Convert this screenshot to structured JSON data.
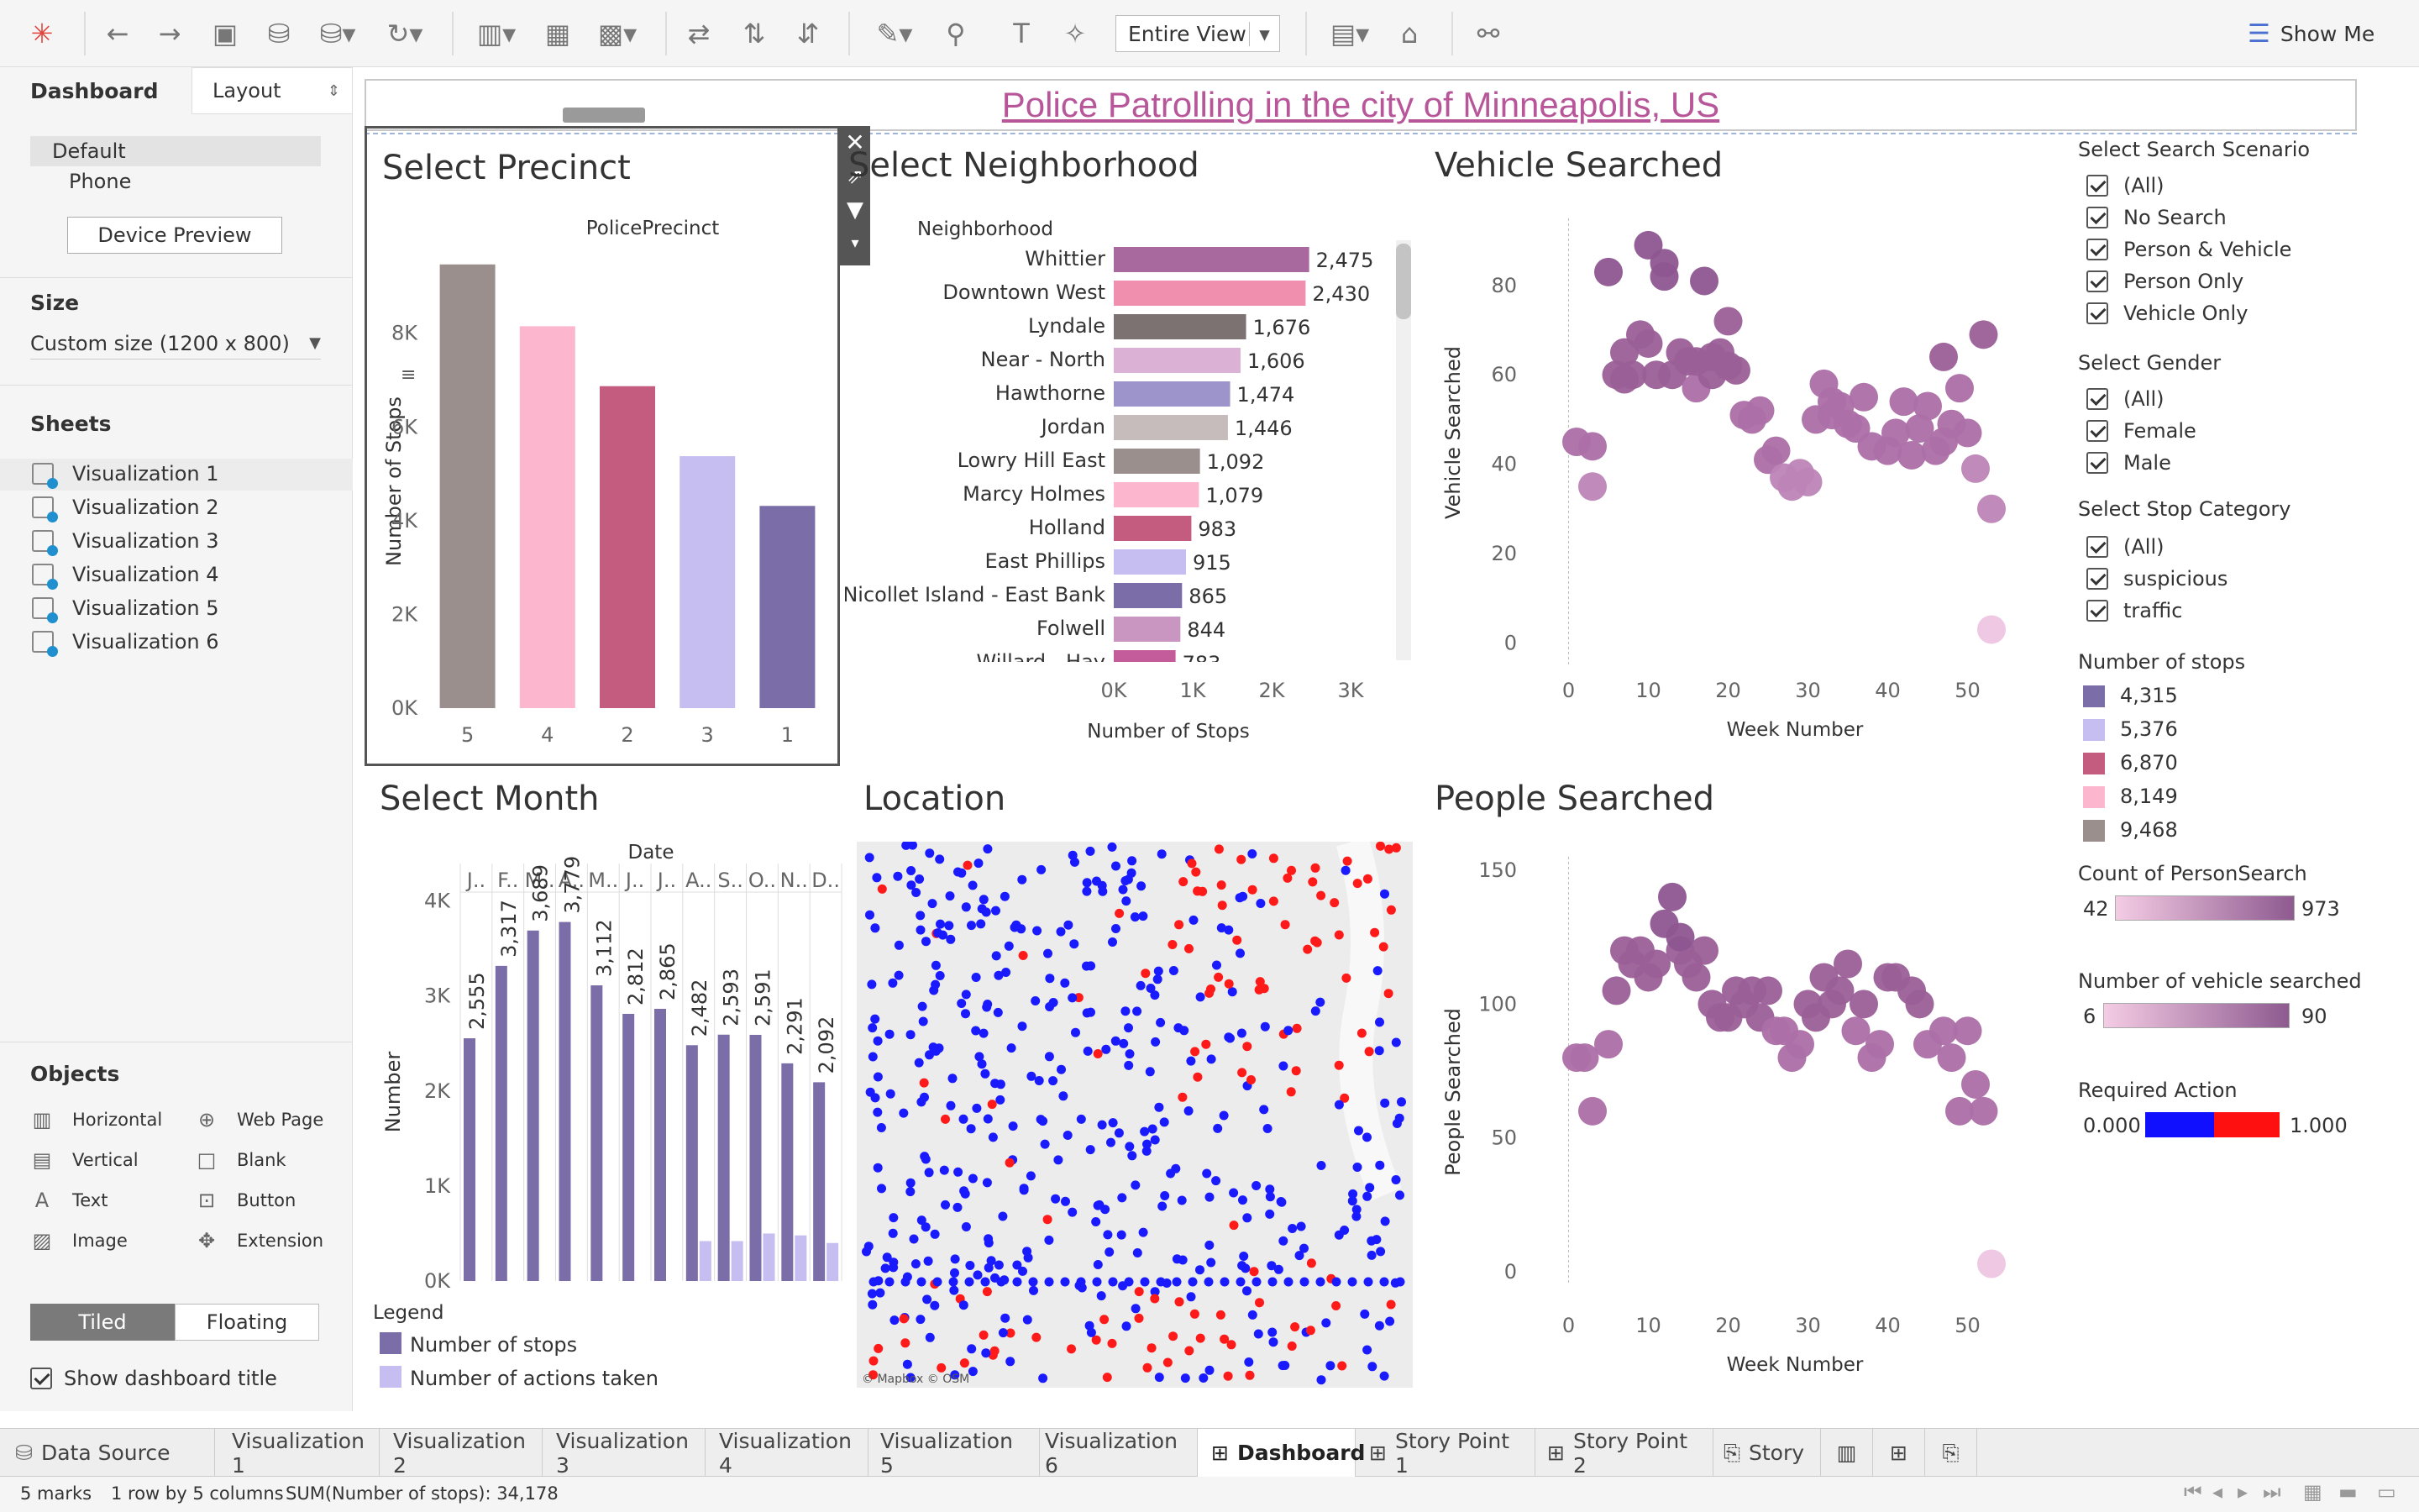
{
  "toolbar": {
    "view_select": "Entire View",
    "show_me": "Show Me"
  },
  "leftpane": {
    "tabs": [
      "Dashboard",
      "Layout"
    ],
    "devices": [
      "Default",
      "Phone"
    ],
    "device_preview": "Device Preview",
    "size_label": "Size",
    "size_value": "Custom size (1200 x 800)",
    "sheets_label": "Sheets",
    "sheets": [
      "Visualization 1",
      "Visualization 2",
      "Visualization 3",
      "Visualization 4",
      "Visualization 5",
      "Visualization 6"
    ],
    "objects_label": "Objects",
    "objects": [
      "Horizontal",
      "Web Page",
      "Vertical",
      "Blank",
      "Text",
      "Button",
      "Image",
      "Extension"
    ],
    "tiled": "Tiled",
    "floating": "Floating",
    "show_title": "Show dashboard title"
  },
  "dashboard": {
    "title": "Police Patrolling in the city of Minneapolis, US",
    "precinct": {
      "title": "Select Precinct",
      "header": "PolicePrecinct",
      "ylabel": "Number of Stops"
    },
    "neighborhood": {
      "title": "Select Neighborhood",
      "header": "Neighborhood",
      "xlabel": "Number of Stops"
    },
    "vehicle": {
      "title": "Vehicle Searched",
      "ylabel": "Vehicle Searched",
      "xlabel": "Week Number"
    },
    "month": {
      "title": "Select Month",
      "header": "Date",
      "ylabel": "Number",
      "legend_title": "Legend",
      "legend": [
        "Number of stops",
        "Number of actions taken"
      ]
    },
    "location": {
      "title": "Location",
      "attribution": "© Mapbox © OSM"
    },
    "people": {
      "title": "People Searched",
      "ylabel": "People Searched",
      "xlabel": "Week Number"
    }
  },
  "filters": {
    "scenario_title": "Select Search Scenario",
    "scenario": [
      "(All)",
      "No Search",
      "Person & Vehicle",
      "Person Only",
      "Vehicle Only"
    ],
    "gender_title": "Select Gender",
    "gender": [
      "(All)",
      "Female",
      "Male"
    ],
    "category_title": "Select Stop Category",
    "category": [
      "(All)",
      "suspicious",
      "traffic"
    ],
    "stops_title": "Number of stops",
    "stops_legend": [
      {
        "label": "4,315",
        "color": "#7b6ea8"
      },
      {
        "label": "5,376",
        "color": "#c6bdf0"
      },
      {
        "label": "6,870",
        "color": "#c45c80"
      },
      {
        "label": "8,149",
        "color": "#fcb6cd"
      },
      {
        "label": "9,468",
        "color": "#9a8f8d"
      }
    ],
    "person_title": "Count of PersonSearch",
    "person_min": "42",
    "person_max": "973",
    "vehicle_title": "Number of vehicle searched",
    "vehicle_min": "6",
    "vehicle_max": "90",
    "action_title": "Required Action",
    "action_min": "0.000",
    "action_max": "1.000"
  },
  "tabs": [
    "Data Source",
    "Visualization 1",
    "Visualization 2",
    "Visualization 3",
    "Visualization 4",
    "Visualization 5",
    "Visualization 6",
    "Dashboard",
    "Story Point 1",
    "Story Point 2",
    "Story"
  ],
  "status": {
    "marks": "5 marks",
    "layout": "1 row by 5 columns",
    "sum": "SUM(Number of stops): 34,178"
  },
  "chart_data": [
    {
      "type": "bar",
      "id": "precinct",
      "categories": [
        "5",
        "4",
        "2",
        "3",
        "1"
      ],
      "values": [
        9468,
        8149,
        6870,
        5376,
        4315
      ],
      "colors": [
        "#9a8f8d",
        "#fcb6cd",
        "#c45c80",
        "#c6bdf0",
        "#7b6ea8"
      ],
      "ylim": [
        0,
        9500
      ],
      "yticks": [
        "0K",
        "2K",
        "4K",
        "6K",
        "8K"
      ],
      "ytick_values": [
        0,
        2000,
        4000,
        6000,
        8000
      ]
    },
    {
      "type": "bar",
      "id": "neighborhood",
      "categories": [
        "Whittier",
        "Downtown West",
        "Lyndale",
        "Near - North",
        "Hawthorne",
        "Jordan",
        "Lowry Hill East",
        "Marcy Holmes",
        "Holland",
        "East Phillips",
        "Nicollet Island - East Bank",
        "Folwell",
        "Willard - Hay"
      ],
      "values": [
        2475,
        2430,
        1676,
        1606,
        1474,
        1446,
        1092,
        1079,
        983,
        915,
        865,
        844,
        783
      ],
      "labels": [
        "2,475",
        "2,430",
        "1,676",
        "1,606",
        "1,474",
        "1,446",
        "1,092",
        "1,079",
        "983",
        "915",
        "865",
        "844",
        "783"
      ],
      "colors": [
        "#a86a9e",
        "#f08fae",
        "#7c7271",
        "#dcb1d6",
        "#9d94cc",
        "#c6bcbb",
        "#9a8f8d",
        "#fcb6cd",
        "#c45c80",
        "#c6bdf0",
        "#7b6ea8",
        "#c995c1",
        "#c45c9c"
      ],
      "xticks": [
        "0K",
        "1K",
        "2K",
        "3K"
      ],
      "xtick_values": [
        0,
        1000,
        2000,
        3000
      ]
    },
    {
      "type": "bar",
      "id": "month",
      "categories": [
        "J..",
        "F..",
        "M..",
        "A..",
        "M..",
        "J..",
        "J..",
        "A..",
        "S..",
        "O..",
        "N..",
        "D.."
      ],
      "series": [
        {
          "name": "Number of stops",
          "values": [
            2555,
            3317,
            3689,
            3779,
            3112,
            2812,
            2865,
            2482,
            2593,
            2591,
            2291,
            2092
          ],
          "labels": [
            "2,555",
            "3,317",
            "3,689",
            "3,779",
            "3,112",
            "2,812",
            "2,865",
            "2,482",
            "2,593",
            "2,591",
            "2,291",
            "2,092"
          ]
        },
        {
          "name": "Number of actions taken",
          "values": [
            0,
            0,
            0,
            0,
            0,
            0,
            0,
            420,
            420,
            500,
            480,
            400
          ]
        }
      ],
      "ylim": [
        0,
        4200
      ],
      "yticks": [
        "0K",
        "1K",
        "2K",
        "3K",
        "4K"
      ],
      "ytick_values": [
        0,
        1000,
        2000,
        3000,
        4000
      ]
    },
    {
      "type": "scatter",
      "id": "vehicle",
      "x": [
        1,
        3,
        3,
        5,
        6,
        7,
        7,
        8,
        9,
        10,
        10,
        11,
        12,
        12,
        13,
        14,
        15,
        16,
        16,
        17,
        18,
        18,
        19,
        20,
        20,
        21,
        22,
        23,
        24,
        25,
        26,
        27,
        28,
        29,
        30,
        31,
        32,
        33,
        33,
        34,
        35,
        36,
        37,
        38,
        40,
        41,
        42,
        43,
        44,
        45,
        46,
        47,
        47,
        48,
        49,
        50,
        51,
        52,
        53
      ],
      "y": [
        45,
        44,
        35,
        83,
        60,
        59,
        65,
        60,
        69,
        89,
        67,
        60,
        85,
        82,
        60,
        65,
        63,
        57,
        63,
        81,
        64,
        60,
        65,
        62,
        72,
        61,
        51,
        50,
        52,
        41,
        43,
        37,
        35,
        38,
        36,
        50,
        58,
        51,
        54,
        53,
        49,
        48,
        55,
        44,
        43,
        47,
        54,
        42,
        48,
        53,
        43,
        45,
        64,
        49,
        57,
        47,
        39,
        69,
        30
      ],
      "y2": [
        0,
        0,
        0,
        0,
        0,
        0,
        0,
        0,
        0,
        0,
        0,
        0,
        0,
        0,
        0,
        0,
        0,
        0,
        0,
        0,
        0,
        0,
        0,
        0,
        0,
        0,
        0,
        0,
        0,
        0,
        0,
        0,
        0,
        0,
        0,
        0,
        0,
        0,
        0,
        0,
        0,
        0,
        0,
        0,
        0,
        0,
        0,
        0,
        0,
        0,
        0,
        0,
        0,
        0,
        0,
        0,
        0,
        0,
        0
      ],
      "xlim": [
        -5,
        55
      ],
      "ylim": [
        -5,
        95
      ],
      "xticks": [
        0,
        10,
        20,
        30,
        40,
        50
      ],
      "yticks": [
        0,
        20,
        40,
        60,
        80
      ],
      "outlier": {
        "x": 53,
        "y": 3
      }
    },
    {
      "type": "scatter",
      "id": "people",
      "x": [
        1,
        2,
        3,
        5,
        6,
        7,
        8,
        9,
        10,
        11,
        12,
        13,
        14,
        14,
        15,
        16,
        17,
        18,
        19,
        20,
        21,
        22,
        23,
        24,
        25,
        26,
        27,
        28,
        29,
        30,
        31,
        32,
        33,
        34,
        35,
        36,
        37,
        38,
        39,
        40,
        41,
        43,
        44,
        45,
        47,
        48,
        49,
        50,
        51,
        52
      ],
      "y": [
        80,
        80,
        60,
        85,
        105,
        120,
        115,
        120,
        110,
        115,
        130,
        140,
        120,
        125,
        115,
        110,
        120,
        100,
        95,
        95,
        105,
        100,
        105,
        95,
        105,
        90,
        90,
        80,
        85,
        100,
        95,
        110,
        100,
        105,
        115,
        90,
        100,
        80,
        85,
        110,
        110,
        105,
        100,
        85,
        90,
        80,
        60,
        90,
        70,
        60
      ],
      "xlim": [
        -5,
        55
      ],
      "ylim": [
        -5,
        155
      ],
      "xticks": [
        0,
        10,
        20,
        30,
        40,
        50
      ],
      "yticks": [
        0,
        50,
        100,
        150
      ],
      "outlier": {
        "x": 53,
        "y": 3
      }
    }
  ]
}
